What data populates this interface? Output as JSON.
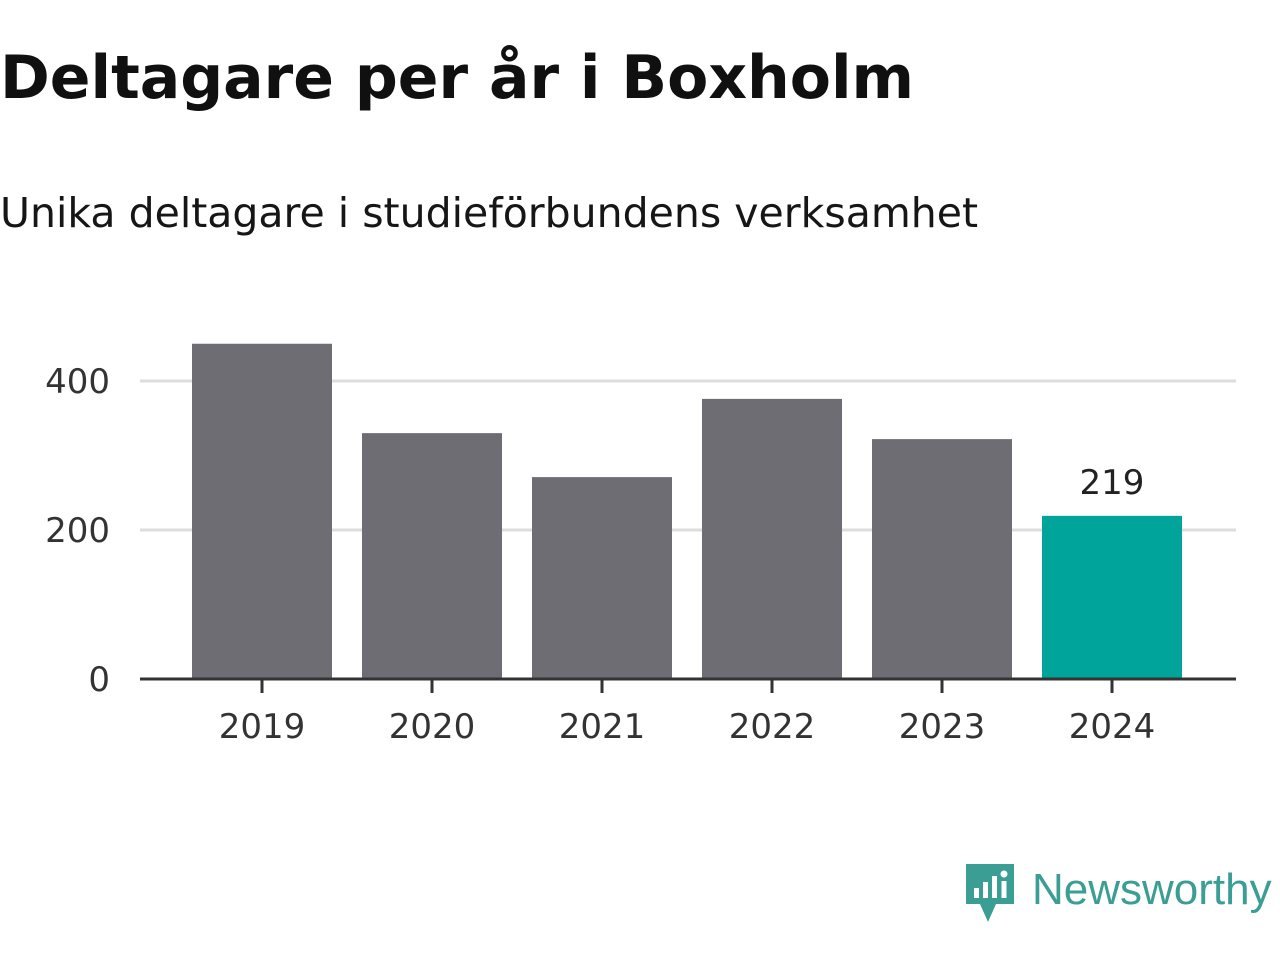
{
  "colors": {
    "bar_default": "#6e6d73",
    "bar_highlight": "#00a49a",
    "gridline": "#dddddd",
    "axis": "#333333",
    "brand": "#3a9e94"
  },
  "brand": {
    "name": "Newsworthy",
    "icon": "newsworthy-logo-icon"
  },
  "chart_data": {
    "type": "bar",
    "title": "Deltagare per år i Boxholm",
    "subtitle": "Unika deltagare i studieförbundens verksamhet",
    "xlabel": "",
    "ylabel": "",
    "categories": [
      "2019",
      "2020",
      "2021",
      "2022",
      "2023",
      "2024"
    ],
    "series": [
      {
        "values": [
          450,
          330,
          271,
          376,
          322,
          219
        ]
      }
    ],
    "highlight_index": 5,
    "data_labels": [
      {
        "index": 5,
        "text": "219"
      }
    ],
    "yticks": [
      0,
      200,
      400
    ],
    "ytick_labels": [
      "0",
      "200",
      "400"
    ],
    "ylim": [
      0,
      480
    ],
    "grid": true,
    "legend": "none"
  }
}
